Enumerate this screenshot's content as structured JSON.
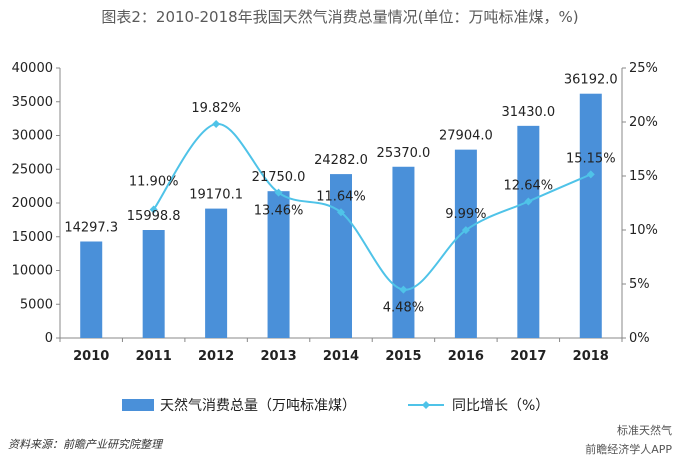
{
  "title": "图表2：2010-2018年我国天然气消费总量情况(单位：万吨标准煤，%)",
  "source": "资料来源：前瞻产业研究院整理",
  "watermarks": [
    "标准天然气",
    "前瞻经济学人APP"
  ],
  "colors": {
    "bar": "#4a90d9",
    "line": "#4fc3e8",
    "axis": "#888888",
    "text": "#222222"
  },
  "chart_data": {
    "type": "bar",
    "title": "图表2：2010-2018年我国天然气消费总量情况(单位：万吨标准煤，%)",
    "categories": [
      "2010",
      "2011",
      "2012",
      "2013",
      "2014",
      "2015",
      "2016",
      "2017",
      "2018"
    ],
    "series": [
      {
        "name": "天然气消费总量（万吨标准煤）",
        "type": "bar",
        "axis": "left",
        "values": [
          14297.3,
          15998.8,
          19170.1,
          21750.0,
          24282.0,
          25370.0,
          27904.0,
          31430.0,
          36192.0
        ],
        "labels": [
          "14297.3",
          "15998.8",
          "19170.1",
          "21750.0",
          "24282.0",
          "25370.0",
          "27904.0",
          "31430.0",
          "36192.0"
        ]
      },
      {
        "name": "同比增长（%）",
        "type": "line",
        "axis": "right",
        "values": [
          null,
          11.9,
          19.82,
          13.46,
          11.64,
          4.48,
          9.99,
          12.64,
          15.15
        ],
        "labels": [
          "",
          "11.90%",
          "19.82%",
          "13.46%",
          "11.64%",
          "4.48%",
          "9.99%",
          "12.64%",
          "15.15%"
        ]
      }
    ],
    "ylim": [
      0,
      40000
    ],
    "yticks": [
      "0",
      "5000",
      "10000",
      "15000",
      "20000",
      "25000",
      "30000",
      "35000",
      "40000"
    ],
    "y2lim": [
      0,
      25
    ],
    "y2ticks": [
      "0%",
      "5%",
      "10%",
      "15%",
      "20%",
      "25%"
    ],
    "grid": false,
    "legend": "bottom"
  }
}
